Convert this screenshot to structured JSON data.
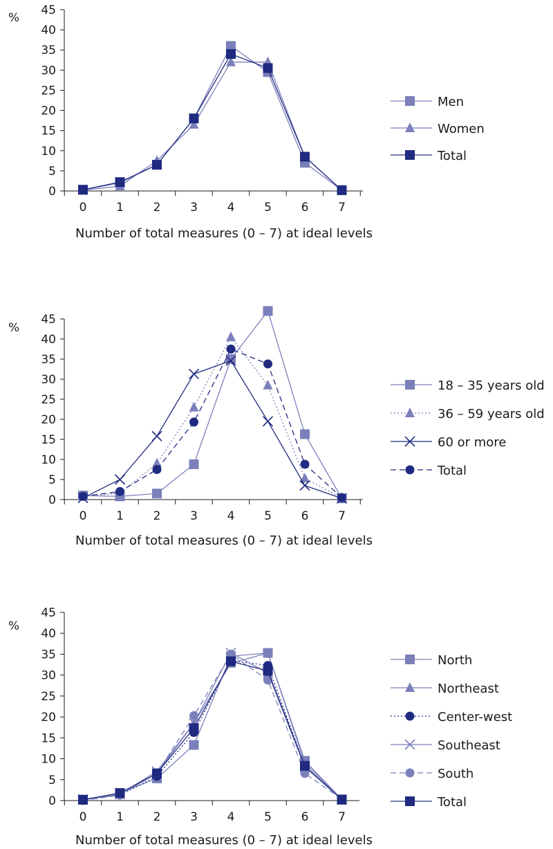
{
  "chart_data": [
    {
      "type": "line",
      "ylabel": "%",
      "xlabel": "Number of total measures (0 – 7) at ideal levels",
      "categories": [
        "0",
        "1",
        "2",
        "3",
        "4",
        "5",
        "6",
        "7"
      ],
      "yticks": [
        "0",
        "5",
        "10",
        "15",
        "20",
        "25",
        "30",
        "35",
        "40",
        "45"
      ],
      "ylim": [
        0,
        45
      ],
      "series": [
        {
          "name": "Men",
          "values": [
            0.3,
            2.0,
            6.5,
            18.0,
            36.0,
            29.5,
            7.0,
            0.2
          ],
          "color": "#7b7fba",
          "marker": "square",
          "dash": "solid"
        },
        {
          "name": "Women",
          "values": [
            0.2,
            1.2,
            7.5,
            16.5,
            32.0,
            32.0,
            8.5,
            0.2
          ],
          "color": "#7b7fba",
          "marker": "triangle",
          "dash": "solid"
        },
        {
          "name": "Total",
          "values": [
            0.3,
            2.2,
            6.5,
            18.0,
            34.0,
            30.5,
            8.5,
            0.2
          ],
          "color": "#1f2a80",
          "marker": "square",
          "dash": "solid"
        }
      ]
    },
    {
      "type": "line",
      "ylabel": "%",
      "xlabel": "Number of total measures (0 – 7) at ideal levels",
      "categories": [
        "0",
        "1",
        "2",
        "3",
        "4",
        "5",
        "6",
        "7"
      ],
      "yticks": [
        "0",
        "5",
        "10",
        "15",
        "20",
        "25",
        "30",
        "35",
        "40",
        "45"
      ],
      "ylim": [
        0,
        45
      ],
      "series": [
        {
          "name": "18 – 35 years old",
          "values": [
            1.0,
            0.8,
            1.5,
            8.8,
            35.0,
            47.0,
            16.3,
            0.3
          ],
          "color": "#7b7fba",
          "marker": "square",
          "dash": "solid"
        },
        {
          "name": "36 – 59 years old",
          "values": [
            0.8,
            1.6,
            9.0,
            23.0,
            40.5,
            28.5,
            5.3,
            0.4
          ],
          "color": "#7b7fba",
          "marker": "triangle",
          "dash": "dotted"
        },
        {
          "name": "60 or more",
          "values": [
            0.4,
            5.0,
            15.8,
            31.3,
            34.6,
            19.5,
            3.5,
            0.3
          ],
          "color": "#1f2a80",
          "marker": "x",
          "dash": "solid"
        },
        {
          "name": "Total",
          "values": [
            0.8,
            2.0,
            7.5,
            19.3,
            37.5,
            33.8,
            8.8,
            0.5
          ],
          "color": "#1f2a80",
          "marker": "circle",
          "dash": "dashed"
        }
      ]
    },
    {
      "type": "line",
      "ylabel": "%",
      "xlabel": "Number of total measures (0 – 7) at ideal levels",
      "categories": [
        "0",
        "1",
        "2",
        "3",
        "4",
        "5",
        "6",
        "7"
      ],
      "yticks": [
        "0",
        "5",
        "10",
        "15",
        "20",
        "25",
        "30",
        "35",
        "40",
        "45"
      ],
      "ylim": [
        0,
        45
      ],
      "series": [
        {
          "name": "North",
          "values": [
            0.2,
            1.8,
            5.3,
            13.3,
            34.5,
            35.3,
            9.5,
            0.3
          ],
          "color": "#7b7fba",
          "marker": "square",
          "dash": "solid"
        },
        {
          "name": "Northeast",
          "values": [
            0.2,
            1.5,
            6.5,
            18.5,
            32.8,
            35.3,
            9.0,
            0.2
          ],
          "color": "#7b7fba",
          "marker": "triangle",
          "dash": "solid"
        },
        {
          "name": "Center-west",
          "values": [
            0.2,
            1.3,
            5.8,
            16.3,
            33.5,
            32.3,
            8.3,
            0.2
          ],
          "color": "#1f2a80",
          "marker": "circle",
          "dash": "dotted"
        },
        {
          "name": "Southeast",
          "values": [
            0.3,
            1.5,
            7.0,
            18.5,
            35.3,
            30.5,
            8.0,
            0.3
          ],
          "color": "#7b7fba",
          "marker": "x",
          "dash": "solid"
        },
        {
          "name": "South",
          "values": [
            0.0,
            1.3,
            6.5,
            20.3,
            35.0,
            28.8,
            6.5,
            0.3
          ],
          "color": "#7b7fba",
          "marker": "circle",
          "dash": "dashed"
        },
        {
          "name": "Total",
          "values": [
            0.2,
            1.8,
            6.5,
            17.3,
            33.3,
            31.0,
            8.3,
            0.2
          ],
          "color": "#1f2a80",
          "marker": "square",
          "dash": "solid"
        }
      ]
    }
  ]
}
